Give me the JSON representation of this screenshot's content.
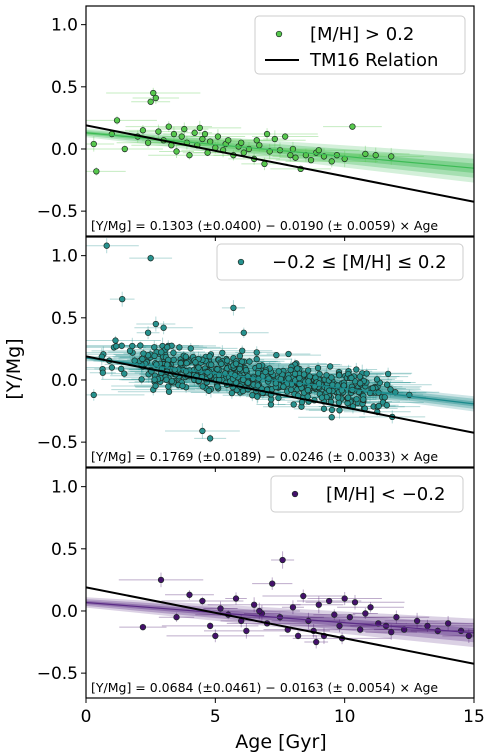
{
  "chart_data": {
    "type": "scatter",
    "ylabel": "[Y/Mg]",
    "xlabel": "Age [Gyr]",
    "xlim": [
      0,
      15
    ],
    "ylim": [
      -0.7,
      1.15
    ],
    "x_ticks": [
      0,
      5,
      10,
      15
    ],
    "y_ticks": [
      -0.5,
      0.0,
      0.5,
      1.0
    ],
    "y_tick_labels": [
      "−0.5",
      "0.0",
      "0.5",
      "1.0"
    ],
    "reference_line": {
      "name": "TM16 Relation",
      "intercept": 0.19,
      "slope": -0.041,
      "color": "#000000"
    },
    "panels": [
      {
        "legend_label": "[M/H] > 0.2",
        "color": "#57c84d",
        "band_color": "#3cbb55",
        "fit_text": "[Y/Mg] = 0.1303 (±0.0400) − 0.0190 (± 0.0059) × Age",
        "intercept": 0.1303,
        "intercept_err": 0.04,
        "slope": -0.019,
        "slope_err": 0.0059,
        "points": [
          [
            0.3,
            0.04
          ],
          [
            0.4,
            -0.18
          ],
          [
            1.2,
            0.23
          ],
          [
            1.5,
            0.0
          ],
          [
            2.0,
            0.1
          ],
          [
            2.4,
            0.05
          ],
          [
            2.5,
            0.38
          ],
          [
            2.6,
            0.45
          ],
          [
            2.7,
            0.41
          ],
          [
            2.8,
            0.14
          ],
          [
            3.0,
            0.07
          ],
          [
            3.2,
            0.18
          ],
          [
            3.4,
            0.12
          ],
          [
            3.5,
            -0.02
          ],
          [
            3.7,
            0.1
          ],
          [
            3.8,
            0.16
          ],
          [
            3.9,
            0.05
          ],
          [
            4.0,
            -0.05
          ],
          [
            4.2,
            0.13
          ],
          [
            4.3,
            0.03
          ],
          [
            4.5,
            0.08
          ],
          [
            4.6,
            0.12
          ],
          [
            4.7,
            -0.03
          ],
          [
            4.8,
            0.06
          ],
          [
            5.0,
            0.01
          ],
          [
            5.1,
            0.1
          ],
          [
            5.3,
            -0.01
          ],
          [
            5.4,
            0.04
          ],
          [
            5.5,
            0.07
          ],
          [
            5.7,
            -0.05
          ],
          [
            5.9,
            0.02
          ],
          [
            6.0,
            0.05
          ],
          [
            6.1,
            -0.03
          ],
          [
            6.3,
            0.0
          ],
          [
            6.5,
            -0.08
          ],
          [
            6.7,
            0.03
          ],
          [
            6.9,
            -0.12
          ],
          [
            7.0,
            0.12
          ],
          [
            7.1,
            -0.02
          ],
          [
            7.3,
            0.08
          ],
          [
            7.5,
            -0.01
          ],
          [
            7.7,
            0.1
          ],
          [
            7.9,
            -0.05
          ],
          [
            8.1,
            -0.07
          ],
          [
            8.3,
            -0.16
          ],
          [
            8.5,
            -0.05
          ],
          [
            8.7,
            -0.09
          ],
          [
            8.9,
            -0.03
          ],
          [
            9.0,
            -0.01
          ],
          [
            9.2,
            -0.06
          ],
          [
            9.5,
            -0.1
          ],
          [
            9.7,
            -0.05
          ],
          [
            10.0,
            -0.08
          ],
          [
            10.3,
            0.18
          ],
          [
            10.8,
            -0.04
          ],
          [
            11.2,
            -0.05
          ],
          [
            11.8,
            -0.06
          ],
          [
            1.0,
            0.12
          ],
          [
            2.2,
            0.15
          ],
          [
            3.3,
            0.03
          ],
          [
            4.4,
            0.17
          ],
          [
            6.6,
            0.07
          ],
          [
            8.0,
            0.0
          ]
        ]
      },
      {
        "legend_label": "−0.2 ≤ [M/H] ≤ 0.2",
        "color": "#26928f",
        "band_color": "#1a8a8c",
        "fit_text": "[Y/Mg] = 0.1769 (±0.0189) − 0.0246 (± 0.0033) × Age",
        "intercept": 0.1769,
        "intercept_err": 0.0189,
        "slope": -0.0246,
        "slope_err": 0.0033,
        "points": [
          [
            0.8,
            1.08
          ],
          [
            2.5,
            0.98
          ],
          [
            1.4,
            0.65
          ],
          [
            5.7,
            0.58
          ],
          [
            6.1,
            0.38
          ],
          [
            2.4,
            0.38
          ],
          [
            2.7,
            0.45
          ],
          [
            3.0,
            0.42
          ],
          [
            4.5,
            -0.41
          ],
          [
            4.8,
            -0.47
          ],
          [
            9.5,
            -0.3
          ],
          [
            10.2,
            -0.2
          ],
          [
            11.5,
            -0.15
          ],
          [
            12.5,
            -0.12
          ],
          [
            0.3,
            -0.12
          ],
          [
            1.0,
            0.1
          ],
          [
            1.8,
            0.22
          ]
        ]
      },
      {
        "legend_label": "[M/H] < −0.2",
        "color": "#44106b",
        "band_color": "#5b2c86",
        "fit_text": "[Y/Mg] = 0.0684 (±0.0461) − 0.0163 (± 0.0054) × Age",
        "intercept": 0.0684,
        "intercept_err": 0.0461,
        "slope": -0.0163,
        "slope_err": 0.0054,
        "points": [
          [
            2.2,
            -0.13
          ],
          [
            2.9,
            0.25
          ],
          [
            4.0,
            0.13
          ],
          [
            4.5,
            0.08
          ],
          [
            4.8,
            -0.12
          ],
          [
            5.2,
            0.02
          ],
          [
            5.5,
            -0.03
          ],
          [
            5.8,
            0.1
          ],
          [
            6.0,
            -0.08
          ],
          [
            6.2,
            -0.16
          ],
          [
            6.5,
            0.05
          ],
          [
            6.8,
            -0.02
          ],
          [
            7.0,
            -0.1
          ],
          [
            7.2,
            0.22
          ],
          [
            7.5,
            -0.05
          ],
          [
            7.6,
            0.41
          ],
          [
            7.8,
            -0.15
          ],
          [
            8.0,
            0.03
          ],
          [
            8.2,
            -0.2
          ],
          [
            8.4,
            0.12
          ],
          [
            8.6,
            -0.08
          ],
          [
            8.8,
            -0.16
          ],
          [
            9.0,
            0.05
          ],
          [
            9.2,
            -0.2
          ],
          [
            9.4,
            0.08
          ],
          [
            9.6,
            -0.03
          ],
          [
            9.8,
            -0.12
          ],
          [
            10.0,
            0.1
          ],
          [
            10.2,
            -0.05
          ],
          [
            10.4,
            0.07
          ],
          [
            10.6,
            -0.15
          ],
          [
            10.8,
            -0.02
          ],
          [
            11.0,
            0.03
          ],
          [
            11.3,
            -0.1
          ],
          [
            11.6,
            -0.12
          ],
          [
            12.0,
            -0.05
          ],
          [
            12.3,
            -0.15
          ],
          [
            12.8,
            -0.08
          ],
          [
            13.2,
            -0.12
          ],
          [
            13.6,
            -0.16
          ],
          [
            14.0,
            -0.1
          ],
          [
            14.5,
            -0.16
          ],
          [
            14.8,
            -0.2
          ],
          [
            6.7,
            0.0
          ],
          [
            8.9,
            -0.25
          ],
          [
            9.9,
            -0.22
          ],
          [
            11.8,
            -0.17
          ],
          [
            3.5,
            -0.05
          ],
          [
            5.0,
            -0.2
          ]
        ]
      }
    ]
  }
}
